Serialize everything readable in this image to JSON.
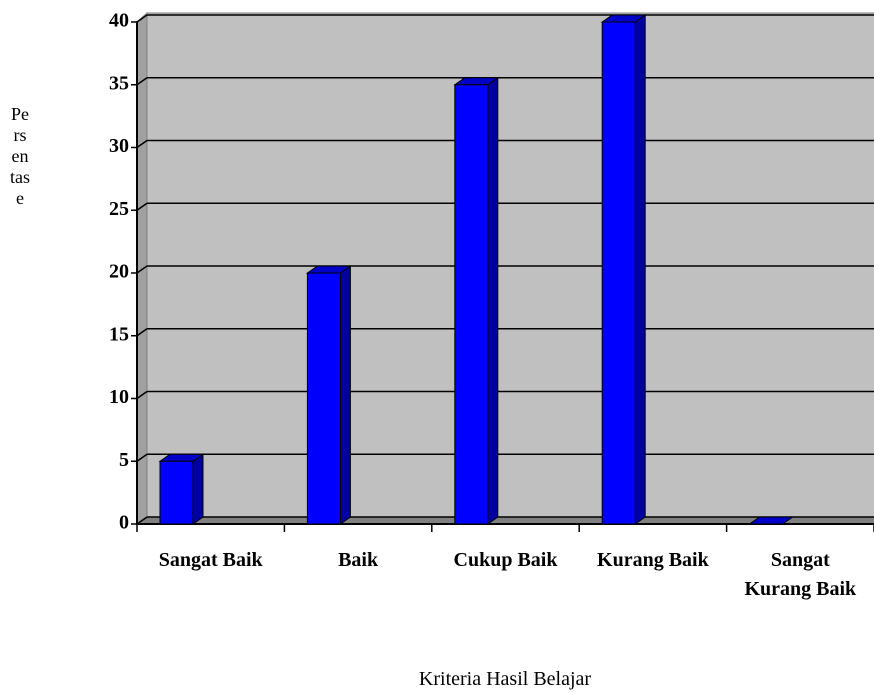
{
  "chart_data": {
    "type": "bar3d",
    "y_label": "Persentase",
    "x_label": "Kriteria Hasil Belajar",
    "categories": [
      "Sangat Baik",
      "Baik",
      "Cukup Baik",
      "Kurang Baik",
      "Sangat Kurang Baik"
    ],
    "values": [
      5,
      20,
      35,
      40,
      0
    ],
    "color": "#0000ff",
    "ylim": [
      0,
      40
    ],
    "yticks": [
      0,
      5,
      10,
      15,
      20,
      25,
      30,
      35,
      40
    ],
    "grid": true
  }
}
